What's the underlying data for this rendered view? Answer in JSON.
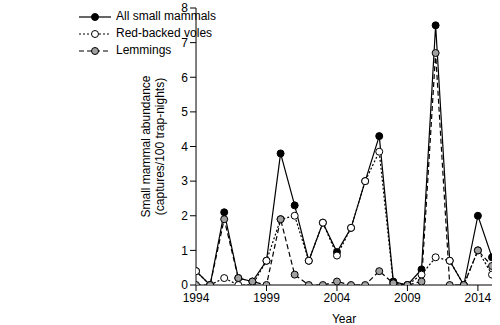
{
  "chart_data": {
    "type": "line",
    "x_label": "Year",
    "y_label": "Small mammal abundance\n(captures/100 trap-nights)",
    "x": [
      1994,
      1995,
      1996,
      1997,
      1998,
      1999,
      2000,
      2001,
      2002,
      2003,
      2004,
      2005,
      2006,
      2007,
      2008,
      2009,
      2010,
      2011,
      2012,
      2013,
      2014,
      2015
    ],
    "series": [
      {
        "name": "All small mammals",
        "color": "#000000",
        "marker": "circle",
        "line_style": "solid",
        "values": [
          0.4,
          0,
          2.1,
          0.2,
          0.1,
          0.7,
          3.8,
          2.3,
          0.7,
          1.8,
          0.95,
          1.65,
          3.0,
          4.3,
          0.1,
          0,
          0.45,
          7.5,
          0.7,
          0,
          2.0,
          0.8
        ]
      },
      {
        "name": "Red-backed voles",
        "color": "#ffffff",
        "marker": "circle",
        "line_style": "dotted",
        "values": [
          0.4,
          0,
          0.2,
          0,
          0,
          0.7,
          1.9,
          2.0,
          0.7,
          1.8,
          0.85,
          1.65,
          3.0,
          3.85,
          0.05,
          0,
          0.3,
          0.8,
          0.7,
          0,
          1.0,
          0.3
        ]
      },
      {
        "name": "Lemmings",
        "color": "#a0a0a0",
        "marker": "circle",
        "line_style": "dashed",
        "values": [
          0,
          0,
          1.9,
          0.2,
          0.1,
          0,
          1.9,
          0.3,
          0,
          0,
          0.1,
          0,
          0,
          0.4,
          0.05,
          0,
          0.1,
          6.7,
          0,
          0,
          1.0,
          0.55
        ]
      }
    ],
    "xlim": [
      1994,
      2015
    ],
    "xticks": [
      1994,
      1999,
      2004,
      2009,
      2014
    ],
    "ylim": [
      0,
      8
    ],
    "yticks": [
      0,
      1,
      2,
      3,
      4,
      5,
      6,
      7,
      8
    ],
    "grid": false,
    "legend": "top-left"
  }
}
